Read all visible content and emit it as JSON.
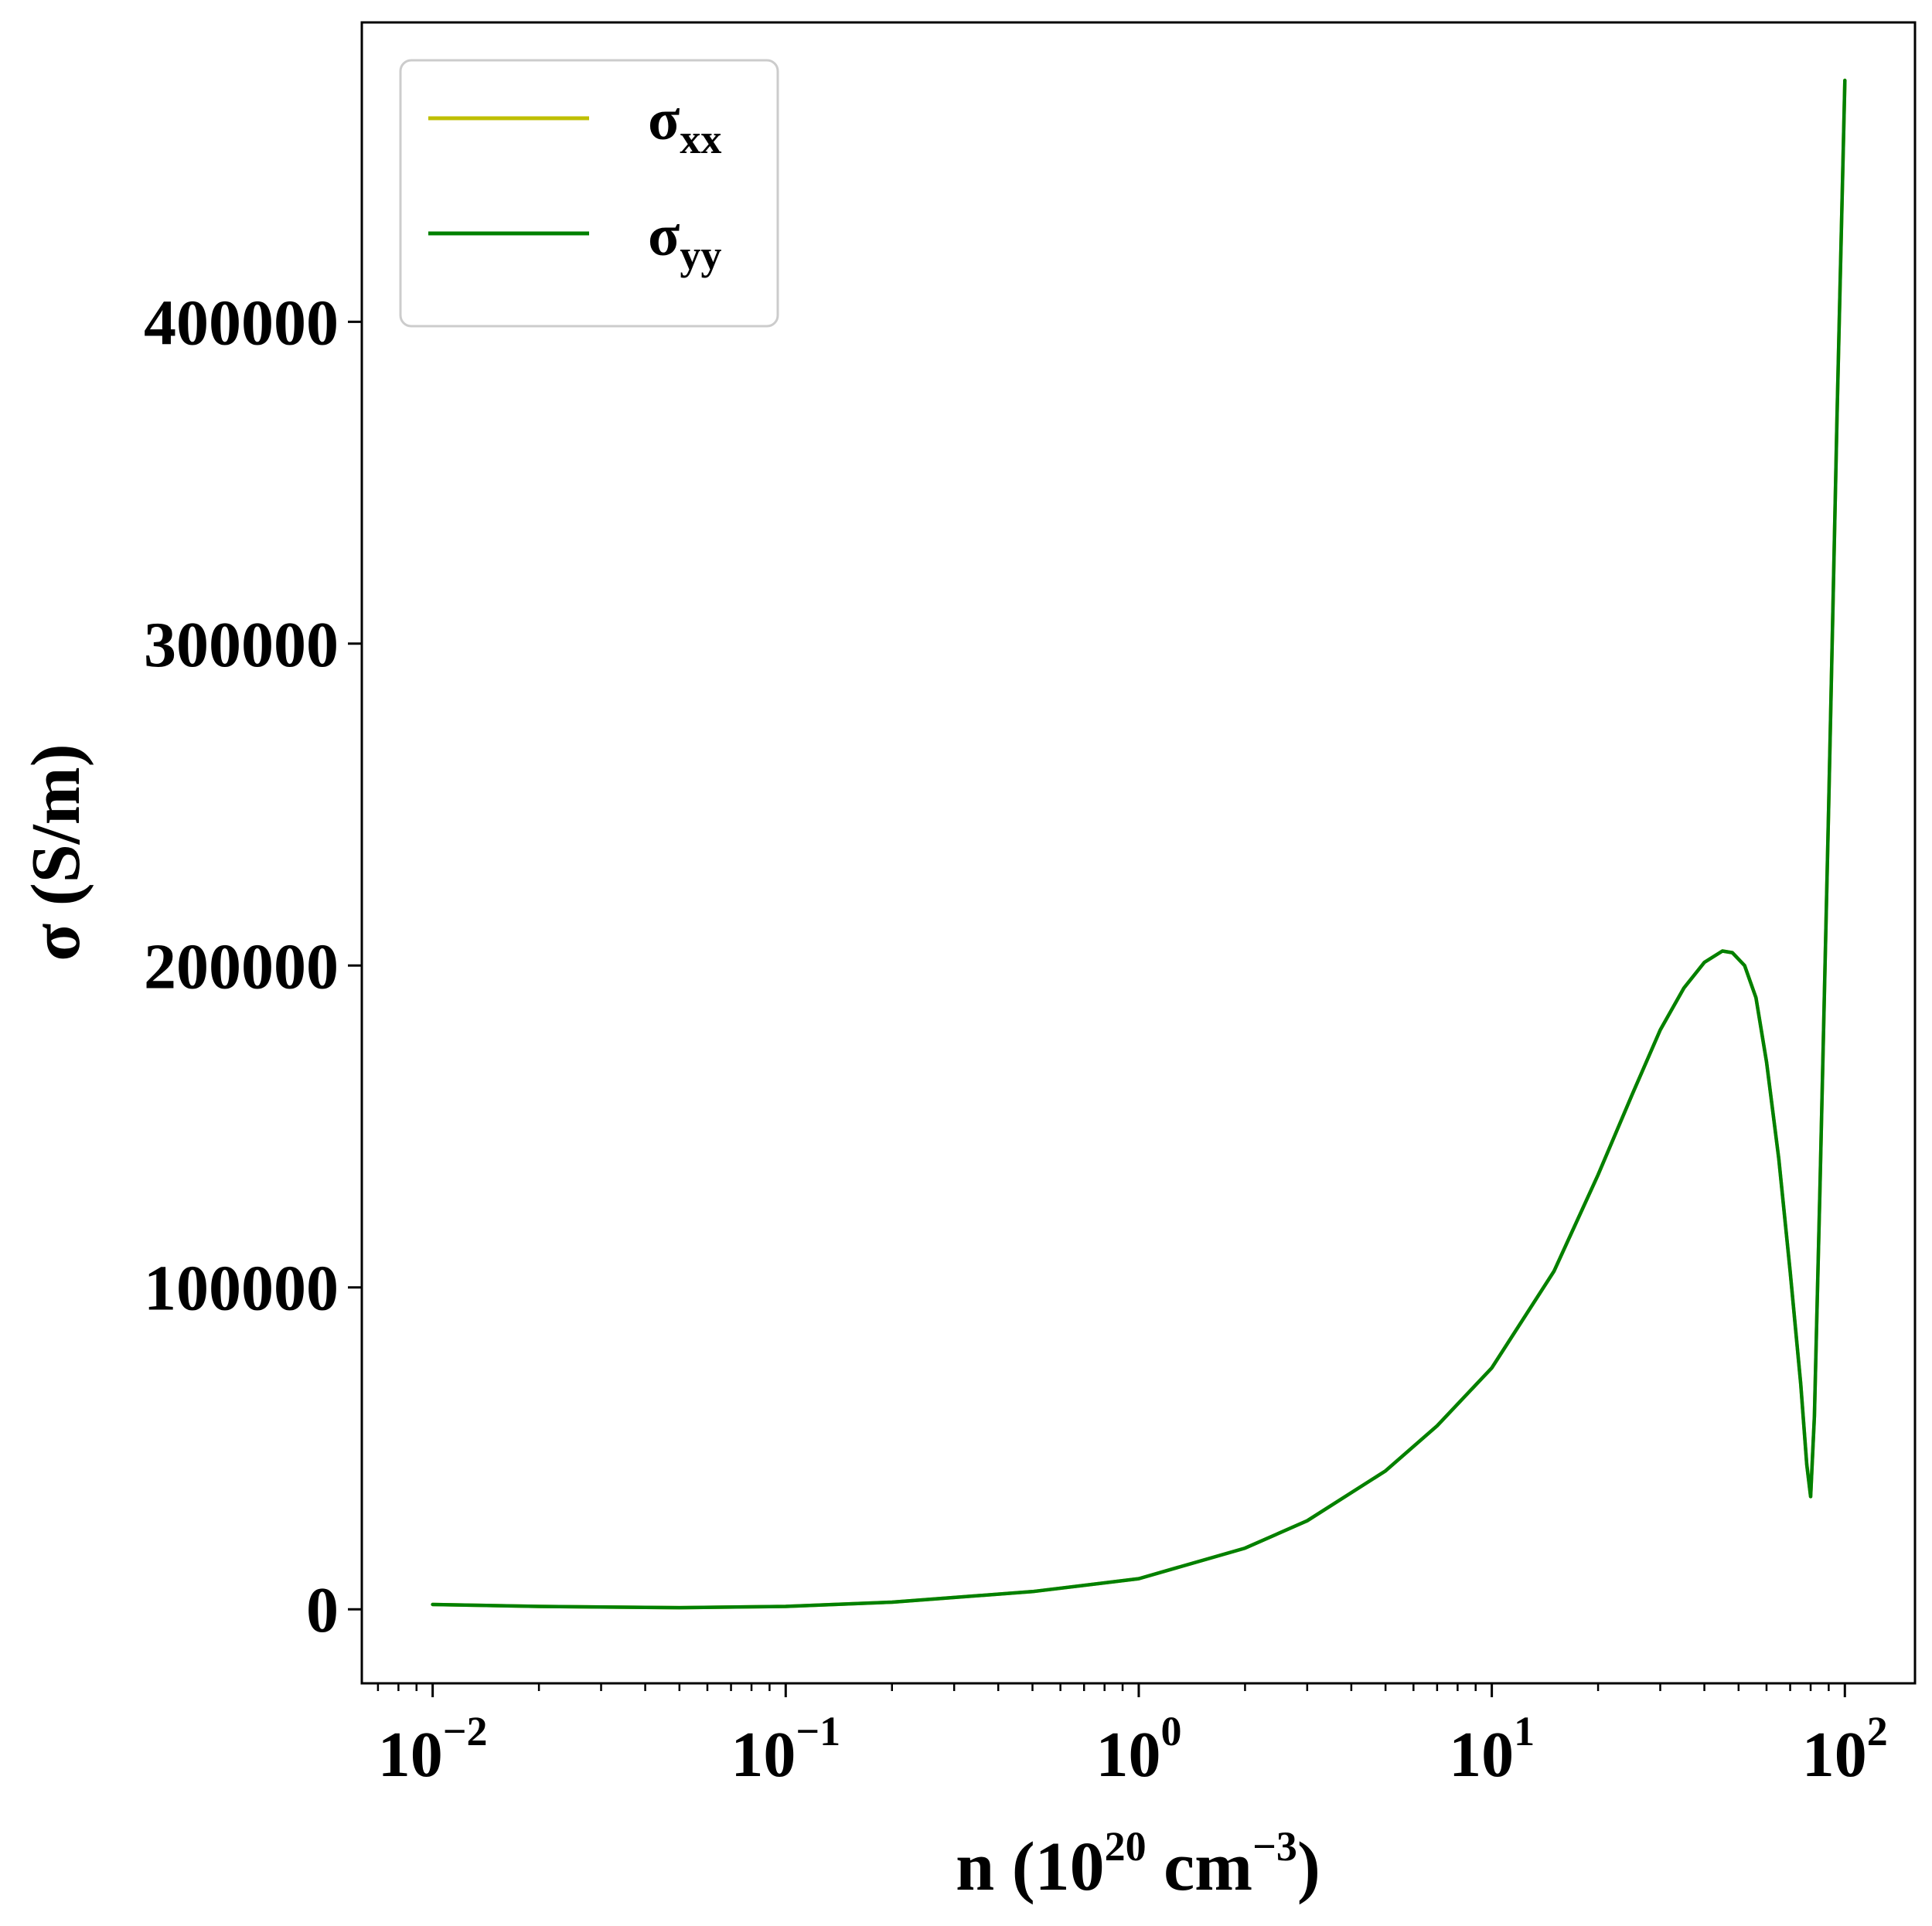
{
  "chart_data": {
    "type": "line",
    "xscale": "log",
    "xlim": [
      0.0063,
      158
    ],
    "ylim": [
      -23000,
      493000
    ],
    "xlabel": {
      "main": "n (10",
      "sup1": "20",
      "mid": " cm",
      "sup2": "−3",
      "end": ")"
    },
    "ylabel": "σ (S/m)",
    "yticks": [
      {
        "value": 0,
        "label": "0"
      },
      {
        "value": 100000,
        "label": "100000"
      },
      {
        "value": 200000,
        "label": "200000"
      },
      {
        "value": 300000,
        "label": "300000"
      },
      {
        "value": 400000,
        "label": "400000"
      }
    ],
    "xticks": [
      {
        "value": 0.01,
        "base": "10",
        "exp": "−2"
      },
      {
        "value": 0.1,
        "base": "10",
        "exp": "−1"
      },
      {
        "value": 1,
        "base": "10",
        "exp": "0"
      },
      {
        "value": 10,
        "base": "10",
        "exp": "1"
      },
      {
        "value": 100,
        "base": "10",
        "exp": "2"
      }
    ],
    "legend_position": "upper-left",
    "grid": false,
    "series": [
      {
        "name": {
          "base": "σ",
          "sub": "xx"
        },
        "color": "#bfbf00",
        "x": [
          0.01,
          0.02,
          0.05,
          0.1,
          0.2,
          0.5,
          1,
          2,
          3,
          5,
          7,
          10,
          15,
          20,
          25,
          30,
          35,
          40,
          45,
          48,
          52,
          56,
          60,
          65,
          70,
          75,
          78,
          80,
          82,
          85,
          90,
          95,
          100
        ],
        "y": [
          1500,
          900,
          500,
          900,
          2200,
          5500,
          9500,
          19000,
          27500,
          43000,
          57000,
          75000,
          105000,
          135000,
          160000,
          180000,
          193000,
          201000,
          204500,
          204000,
          200000,
          190000,
          170000,
          140000,
          105000,
          70000,
          45000,
          35000,
          60000,
          130000,
          250000,
          370000,
          475000
        ]
      },
      {
        "name": {
          "base": "σ",
          "sub": "yy"
        },
        "color": "#008000",
        "x": [
          0.01,
          0.02,
          0.05,
          0.1,
          0.2,
          0.5,
          1,
          2,
          3,
          5,
          7,
          10,
          15,
          20,
          25,
          30,
          35,
          40,
          45,
          48,
          52,
          56,
          60,
          65,
          70,
          75,
          78,
          80,
          82,
          85,
          90,
          95,
          100
        ],
        "y": [
          1500,
          900,
          500,
          900,
          2200,
          5500,
          9500,
          19000,
          27500,
          43000,
          57000,
          75000,
          105000,
          135000,
          160000,
          180000,
          193000,
          201000,
          204500,
          204000,
          200000,
          190000,
          170000,
          140000,
          105000,
          70000,
          45000,
          35000,
          60000,
          130000,
          250000,
          370000,
          475000
        ]
      }
    ]
  }
}
